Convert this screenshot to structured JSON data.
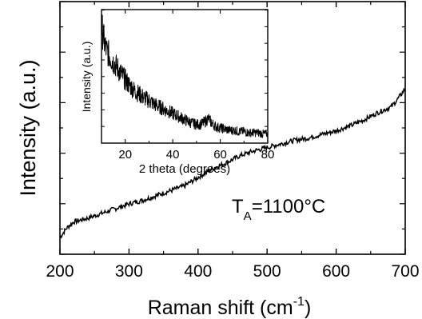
{
  "chart_data": [
    {
      "type": "line",
      "xlabel": "Raman shift (cm",
      "xlabel_sup": "-1",
      "xlabel_tail": ")",
      "ylabel": "Intensity (a.u.)",
      "xlim": [
        200,
        700
      ],
      "xticks": [
        200,
        300,
        400,
        500,
        600,
        700
      ],
      "y_ticklabels": false,
      "grid": false,
      "annotation": {
        "main": "T",
        "subscript": "A",
        "tail": "=1100°C"
      },
      "series": [
        {
          "x": [
            200,
            210,
            220,
            240,
            260,
            280,
            300,
            320,
            340,
            360,
            380,
            400,
            420,
            440,
            460,
            480,
            500,
            520,
            540,
            560,
            580,
            600,
            620,
            640,
            660,
            680,
            690,
            700
          ],
          "y": [
            2,
            10,
            15,
            18,
            22,
            26,
            30,
            33,
            37,
            41,
            45,
            52,
            59,
            64,
            70,
            74,
            77,
            80,
            83,
            85,
            88,
            91,
            95,
            100,
            106,
            111,
            118,
            126
          ]
        }
      ]
    },
    {
      "type": "line",
      "xlabel": "2 theta (degrees)",
      "ylabel": "Intensity (a.u.)",
      "xlim": [
        10,
        80
      ],
      "xticks": [
        20,
        40,
        60,
        80
      ],
      "y_ticklabels": false,
      "grid": false,
      "series": [
        {
          "x": [
            10,
            11,
            12,
            14,
            16,
            18,
            20,
            22,
            24,
            26,
            28,
            30,
            32,
            34,
            36,
            38,
            40,
            42,
            44,
            46,
            48,
            50,
            52,
            54,
            55,
            56,
            58,
            60,
            62,
            64,
            66,
            68,
            70,
            72,
            74,
            76,
            78,
            80
          ],
          "y": [
            95,
            83,
            75,
            68,
            62,
            56,
            50,
            45,
            41,
            38,
            35,
            33,
            30,
            28,
            26,
            24,
            22,
            20,
            18,
            16,
            14,
            13,
            13,
            16,
            18,
            15,
            11,
            10,
            9,
            8,
            8,
            7,
            7,
            6,
            6,
            6,
            5,
            5
          ]
        }
      ]
    }
  ]
}
